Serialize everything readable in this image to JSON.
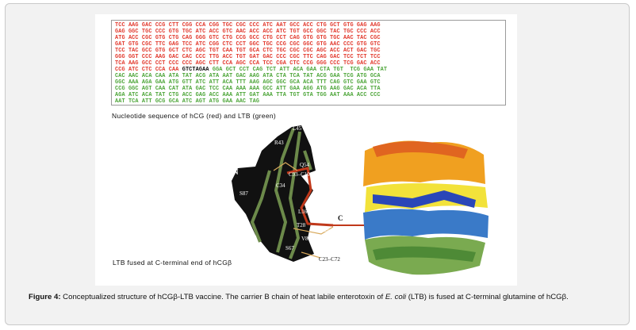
{
  "sequence": {
    "red_lines": [
      "TCC AAG GAC CCG CTT CGG CCA CGG TGC CGC CCC ATC AAT GCC ACC CTG GCT GTG GAG AAG",
      "GAG GGC TGC CCC GTG TGC ATC ACC GTC AAC ACC ACC ATC TGT GCC GGC TAC TGC CCC ACC",
      "ATG ACC CGC GTG CTG CAG GGG GTC CTG CCG GCC CTG CCT CAG GTG GTG TGC AAC TAC CGC",
      "GAT GTG CGC TTC GAG TCC ATC CGG CTC CCT GGC TGC CCG CGC GGC GTG AAC CCC GTG GTC",
      "TCC TAC GCC GTG GCT CTC AGC TGT CAA TGT GCA CTC TGC CGC CGC AGC ACC ACT GAC TGC",
      "GGG GGT CCC AAG GAC CAC CCC TTG ACC TGT GAT GAC CCC CGC TTC CAG GAC TCC TCT TCC",
      "TCA AAG GCC CCT CCC CCC AGC CTT CCA AGC CCA TCC CGA CTC CCG GGG CCC TCG GAC ACC"
    ],
    "mixed_line": {
      "red": "CCG ATC CTC CCA CAA ",
      "linker": "GTCTAGAA",
      "green": " GGA GCT CCT CAG TCT ATT ACA GAA CTA TGT  TCG GAA TAT"
    },
    "green_lines": [
      "CAC AAC ACA CAA ATA TAT ACG ATA AAT GAC AAG ATA CTA TCA TAT ACG GAA TCG ATG GCA",
      "GGC AAA AGA GAA ATG GTT ATC ATT ACA TTT AAG AGC GGC GCA ACA TTT CAG GTC GAA GTC",
      "CCG GGC AGT CAA CAT ATA GAC TCC CAA AAA AAA GCC ATT GAA AGG ATG AAG GAC ACA TTA",
      "AGA ATC ACA TAT CTG ACC GAG ACC AAA ATT GAT AAA TTA TGT GTA TGG AAT AAA ACC CCC",
      "AAT TCA ATT GCG GCA ATC AGT ATG GAA AAC TAG"
    ],
    "caption": "Nucleotide sequence of hCG (red) and LTB (green)"
  },
  "diagram": {
    "labels": [
      "L45",
      "R43",
      "P50",
      "Q54",
      "N",
      "C93–C100",
      "C34",
      "S87",
      "L16",
      "T28",
      "V80",
      "S67",
      "C",
      "C26–C110",
      "C23–C72"
    ],
    "caption": "LTB fused at C-terminal end of hCGβ"
  },
  "figure_caption": {
    "label": "Figure 4:",
    "text_1": " Conceptualized structure of hCGβ-LTB vaccine. The carrier B chain of heat labile enterotoxin of ",
    "italic": "E. coli",
    "text_2": " (LTB) is fused at C-terminal glutamine of hCGβ."
  }
}
